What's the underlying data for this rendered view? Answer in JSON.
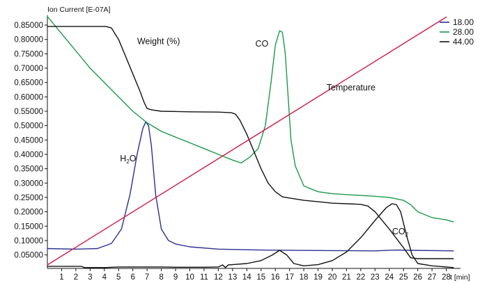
{
  "chart_data": {
    "type": "line",
    "ylabel": "Ion Current [E-07A]",
    "xlabel": "t [min]",
    "xlim": [
      0,
      29
    ],
    "ylim": [
      0.003,
      0.884
    ],
    "grid": false,
    "legend_position": "top-right",
    "x_ticks": [
      1,
      2,
      3,
      4,
      5,
      6,
      7,
      8,
      9,
      10,
      11,
      12,
      13,
      14,
      15,
      16,
      17,
      18,
      19,
      20,
      21,
      22,
      23,
      24,
      25,
      26,
      27,
      28
    ],
    "y_ticks": [
      {
        "value": 0.05,
        "label": "0.05000"
      },
      {
        "value": 0.1,
        "label": "0.10000"
      },
      {
        "value": 0.15,
        "label": "0.15000"
      },
      {
        "value": 0.2,
        "label": "0.20000"
      },
      {
        "value": 0.25,
        "label": "0.25000"
      },
      {
        "value": 0.3,
        "label": "0.30000"
      },
      {
        "value": 0.35,
        "label": "0.35000"
      },
      {
        "value": 0.4,
        "label": "0.40000"
      },
      {
        "value": 0.45,
        "label": "0.45000"
      },
      {
        "value": 0.5,
        "label": "0.50000"
      },
      {
        "value": 0.55,
        "label": "0.55000"
      },
      {
        "value": 0.6,
        "label": "0.60000"
      },
      {
        "value": 0.65,
        "label": "0.65000"
      },
      {
        "value": 0.7,
        "label": "0.70000"
      },
      {
        "value": 0.75,
        "label": "0.75000"
      },
      {
        "value": 0.8,
        "label": "0.80000"
      },
      {
        "value": 0.85,
        "label": "0.85000"
      }
    ],
    "series": [
      {
        "name": "18.00",
        "color": "#2a2f8f",
        "x": [
          0,
          2,
          3.5,
          4.5,
          5.2,
          5.8,
          6.3,
          6.7,
          6.9,
          7.1,
          7.3,
          7.6,
          8,
          8.5,
          9,
          10,
          12,
          15,
          20,
          23,
          24.5,
          25.5,
          28.5
        ],
        "y": [
          0.072,
          0.07,
          0.072,
          0.09,
          0.14,
          0.26,
          0.4,
          0.49,
          0.513,
          0.5,
          0.43,
          0.26,
          0.14,
          0.1,
          0.088,
          0.078,
          0.07,
          0.067,
          0.065,
          0.064,
          0.067,
          0.066,
          0.064
        ]
      },
      {
        "name": "28.00",
        "color": "#1a9a4a",
        "x": [
          0,
          1,
          2,
          3,
          4,
          5,
          6,
          7,
          8,
          9,
          10,
          11,
          12,
          13,
          13.6,
          14.2,
          14.8,
          15.3,
          15.7,
          16.0,
          16.3,
          16.5,
          16.7,
          16.9,
          17.1,
          17.4,
          18,
          19,
          20,
          22,
          23,
          24,
          25,
          25.5,
          26,
          27,
          28,
          28.5
        ],
        "y": [
          0.88,
          0.82,
          0.76,
          0.7,
          0.65,
          0.6,
          0.55,
          0.51,
          0.48,
          0.46,
          0.44,
          0.42,
          0.4,
          0.38,
          0.37,
          0.39,
          0.42,
          0.5,
          0.65,
          0.78,
          0.83,
          0.825,
          0.75,
          0.6,
          0.45,
          0.36,
          0.29,
          0.27,
          0.263,
          0.257,
          0.254,
          0.25,
          0.24,
          0.225,
          0.2,
          0.18,
          0.172,
          0.165
        ]
      },
      {
        "name": "44.00",
        "color": "#111111",
        "x": [
          0,
          3.5,
          4.1,
          4.5,
          5,
          5.5,
          6,
          6.5,
          6.8,
          7,
          7.3,
          8,
          10,
          12,
          12.9,
          13.2,
          13.5,
          14,
          14.5,
          15,
          15.5,
          16,
          16.5,
          17,
          17.5,
          18,
          19,
          20,
          21,
          22,
          22.5,
          23,
          24,
          25,
          25.5,
          26,
          28.5
        ],
        "y": [
          0.845,
          0.845,
          0.845,
          0.84,
          0.8,
          0.74,
          0.68,
          0.62,
          0.58,
          0.56,
          0.555,
          0.55,
          0.548,
          0.547,
          0.545,
          0.54,
          0.52,
          0.47,
          0.41,
          0.35,
          0.3,
          0.27,
          0.252,
          0.248,
          0.244,
          0.24,
          0.235,
          0.23,
          0.228,
          0.226,
          0.22,
          0.2,
          0.14,
          0.075,
          0.04,
          0.037,
          0.037
        ]
      },
      {
        "name": "",
        "color": "#111111",
        "x": [
          0,
          2.4,
          2.6,
          4,
          5,
          6,
          7,
          8,
          9,
          10,
          11,
          12,
          12.3,
          12.5,
          12.7,
          13,
          14,
          15,
          15.8,
          16.3,
          16.8,
          17.3,
          18,
          19,
          20,
          21,
          22,
          23,
          23.8,
          24.2,
          24.5,
          24.8,
          25.2,
          25.6,
          26,
          27,
          28.5
        ],
        "y": [
          0.01,
          0.01,
          0.006,
          0.006,
          0.008,
          0.008,
          0.008,
          0.008,
          0.007,
          0.007,
          0.007,
          0.008,
          0.015,
          0.006,
          0.015,
          0.016,
          0.02,
          0.03,
          0.05,
          0.066,
          0.05,
          0.02,
          0.012,
          0.016,
          0.03,
          0.06,
          0.11,
          0.17,
          0.215,
          0.228,
          0.225,
          0.2,
          0.12,
          0.05,
          0.02,
          0.012,
          0.006
        ]
      },
      {
        "name": "",
        "color": "#d01a4a",
        "x": [
          0,
          28
        ],
        "y": [
          0.015,
          0.878
        ]
      }
    ],
    "annotations": [
      {
        "text": "Weight (%)",
        "x": 6.3,
        "y": 0.783
      },
      {
        "text": "CO",
        "x": 14.6,
        "y": 0.775
      },
      {
        "text": "Temperature",
        "x": 19.6,
        "y": 0.622
      },
      {
        "text": "H",
        "sub": "2",
        "text_after": "O",
        "x": 5.1,
        "y": 0.376
      },
      {
        "text": "CO",
        "sub": "2",
        "x": 24.2,
        "y": 0.122
      }
    ]
  }
}
